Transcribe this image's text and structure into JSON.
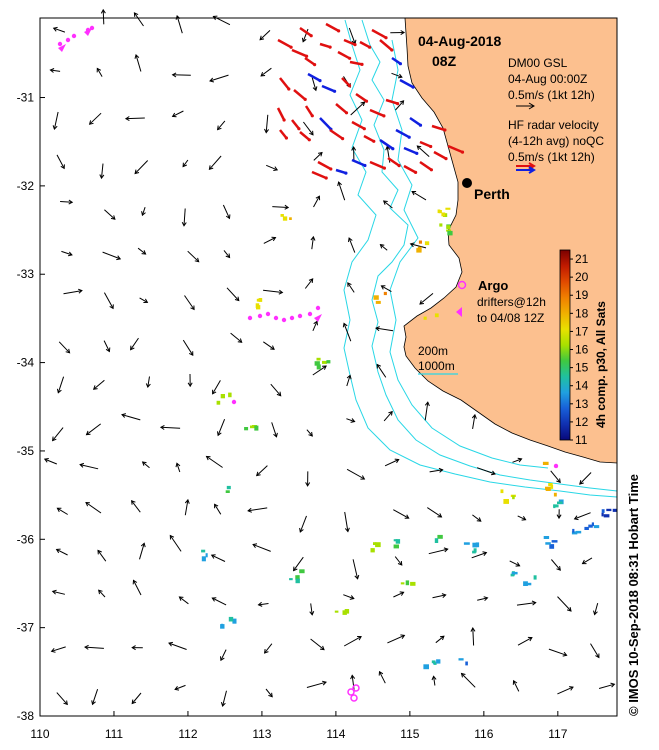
{
  "map": {
    "date": "04-Aug-2018",
    "time": "08Z",
    "city": "Perth",
    "lon_ticks": [
      "110",
      "111",
      "112",
      "113",
      "114",
      "115",
      "116",
      "117"
    ],
    "lat_ticks": [
      "-31",
      "-32",
      "-33",
      "-34",
      "-35",
      "-36",
      "-37",
      "-38"
    ],
    "lon_range": [
      110,
      117.8
    ],
    "lat_range": [
      -30.1,
      -38.0
    ]
  },
  "legend": {
    "model_title": "DM00 GSL",
    "model_time": "04-Aug 00:00Z",
    "model_scale": "0.5m/s (1kt 12h)",
    "radar_title": "HF radar velocity",
    "radar_sub": "(4-12h avg) noQC",
    "radar_scale": "0.5m/s (1kt 12h)",
    "argo_label": "Argo",
    "drifter_line1": "drifters@12h",
    "drifter_line2": "to 04/08 12Z",
    "contour_200": "200m",
    "contour_1000": "1000m"
  },
  "colorbar": {
    "title": "4h comp. p30, All Sats",
    "ticks": [
      "21",
      "20",
      "19",
      "18",
      "17",
      "16",
      "15",
      "14",
      "13",
      "12",
      "11"
    ],
    "min": 11,
    "max": 21.5
  },
  "credit": "© IMOS 10-Sep-2018 08:31 Hobart Time",
  "colors": {
    "land": "#fcc08f",
    "contour": "#29d7e6",
    "radar_onshore": "#e01010",
    "radar_offshore": "#1020e0",
    "argo": "#ff30ff",
    "drifter": "#ff30ff"
  }
}
